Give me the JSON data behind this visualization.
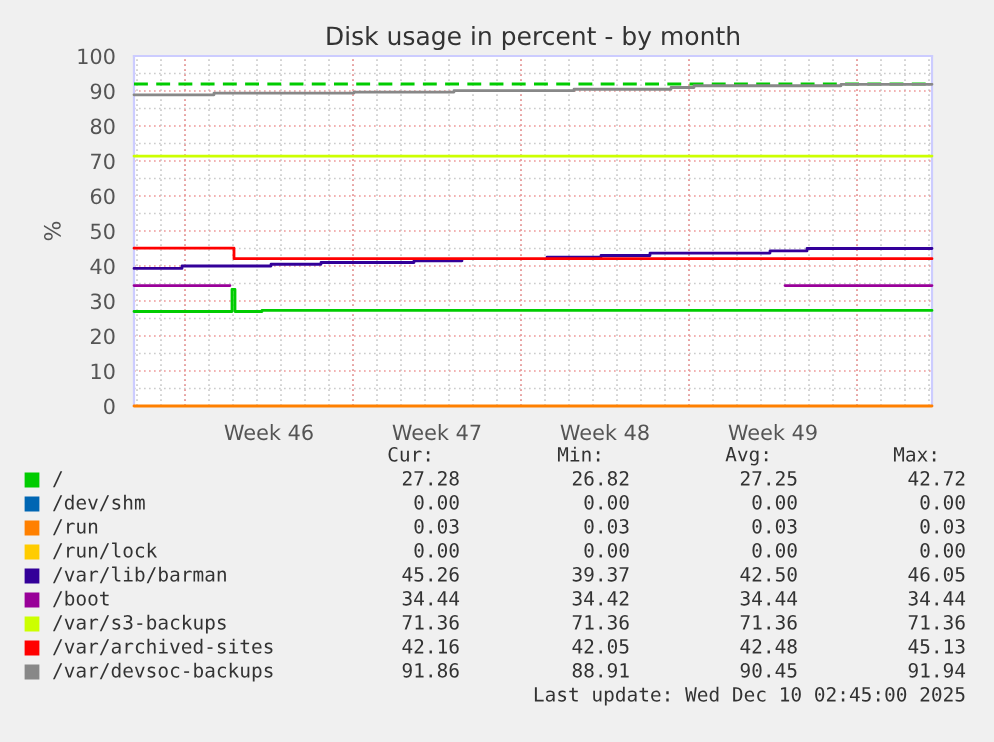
{
  "chart_data": {
    "type": "step",
    "title": "Disk usage in percent - by month",
    "ylabel": "%",
    "xlim": [
      "2025-11-07T21:00",
      "2025-12-11T03:00"
    ],
    "xticks": [
      {
        "value": "2025-11-10",
        "label": null
      },
      {
        "value": "2025-11-13T12:00",
        "label": "Week 46"
      },
      {
        "value": "2025-11-17",
        "label": null
      },
      {
        "value": "2025-11-20T12:00",
        "label": "Week 47"
      },
      {
        "value": "2025-11-24",
        "label": null
      },
      {
        "value": "2025-11-27T12:00",
        "label": "Week 48"
      },
      {
        "value": "2025-12-01",
        "label": null
      },
      {
        "value": "2025-12-04T12:00",
        "label": "Week 49"
      },
      {
        "value": "2025-12-08",
        "label": null
      }
    ],
    "ylim": [
      0,
      100
    ],
    "yticks": [
      0,
      10,
      20,
      30,
      40,
      50,
      60,
      70,
      80,
      90,
      100
    ],
    "grid": true,
    "legend": "bottom",
    "ref_lines": [
      {
        "axis": "y",
        "value": 92,
        "color": "#00cc00",
        "line_style": "dashed"
      }
    ],
    "series": [
      {
        "name": "/",
        "color": "#00cc00",
        "x": [
          "2025-11-07T21:00",
          "2025-11-11T21:00",
          "2025-11-11T23:00",
          "2025-11-12T02:00",
          "2025-11-13T05:00",
          "2025-12-11T03:00"
        ],
        "values": [
          27.0,
          27.0,
          33.3,
          27.0,
          27.3,
          27.3
        ]
      },
      {
        "name": "/dev/shm",
        "color": "#0066b3"
      },
      {
        "name": "/run",
        "color": "#ff8000",
        "x": [
          "2025-11-07T21:00",
          "2025-12-11T03:00"
        ],
        "values": [
          0,
          0
        ]
      },
      {
        "name": "/run/lock",
        "color": "#ffcc00"
      },
      {
        "name": "/var/lib/barman",
        "color": "#330099",
        "x": [
          "2025-11-07T21:00",
          "2025-11-09T21:00",
          "2025-11-13T14:00",
          "2025-11-15T16:00",
          "2025-11-19T13:00",
          "2025-11-21T13:00",
          "2025-11-25T02:00",
          "2025-11-27T08:00",
          "2025-11-29T09:00",
          "2025-12-04T09:00",
          "2025-12-05T22:00",
          "2025-12-11T03:00"
        ],
        "values": [
          39.3,
          40.0,
          40.5,
          41.0,
          41.5,
          null,
          42.5,
          43.0,
          43.7,
          44.3,
          45.0,
          45.0
        ]
      },
      {
        "name": "/boot",
        "color": "#990099",
        "x": [
          "2025-11-07T21:00",
          "2025-11-11T21:00",
          "2025-12-05T00:00",
          "2025-12-11T03:00"
        ],
        "values": [
          34.4,
          null,
          34.4,
          34.4
        ]
      },
      {
        "name": "/var/s3-backups",
        "color": "#ccff00",
        "x": [
          "2025-11-07T21:00",
          "2025-12-11T03:00"
        ],
        "values": [
          71.4,
          71.4
        ]
      },
      {
        "name": "/var/archived-sites",
        "color": "#ff0000",
        "x": [
          "2025-11-07T21:00",
          "2025-11-11T21:00",
          "2025-11-12T01:00",
          "2025-12-11T03:00"
        ],
        "values": [
          45.1,
          45.1,
          42.1,
          42.1
        ]
      },
      {
        "name": "/var/devsoc-backups",
        "color": "#888888",
        "x": [
          "2025-11-07T21:00",
          "2025-11-11T05:00",
          "2025-11-17T01:00",
          "2025-11-21T05:00",
          "2025-11-26T05:00",
          "2025-11-30T06:00",
          "2025-12-01T05:00",
          "2025-12-07T08:00",
          "2025-12-11T03:00"
        ],
        "values": [
          88.9,
          89.4,
          89.7,
          90.1,
          90.5,
          91.0,
          91.5,
          91.9,
          91.9
        ]
      }
    ],
    "annotations": [
      "Cur:",
      "Min:",
      "Avg:",
      "Max:",
      "27.28",
      "26.82",
      "27.25",
      "42.72",
      "0.00",
      "0.00",
      "0.00",
      "0.00",
      "0.03",
      "0.03",
      "0.03",
      "0.03",
      "0.00",
      "0.00",
      "0.00",
      "0.00",
      "45.26",
      "39.37",
      "42.50",
      "46.05",
      "34.44",
      "34.42",
      "34.44",
      "34.44",
      "71.36",
      "71.36",
      "71.36",
      "71.36",
      "42.16",
      "42.05",
      "42.48",
      "45.13",
      "91.86",
      "88.91",
      "90.45",
      "91.94",
      "Last update: Wed Dec 10 02:45:00 2025"
    ]
  }
}
